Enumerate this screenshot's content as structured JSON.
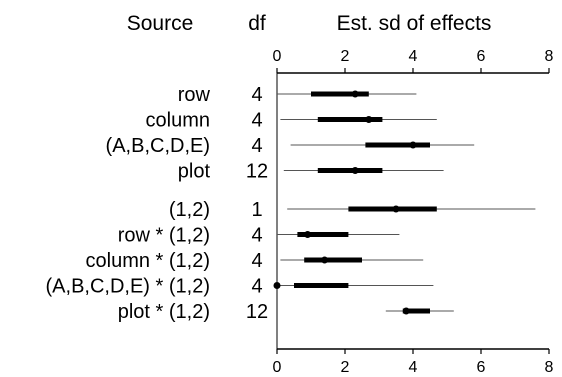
{
  "headers": {
    "source": "Source",
    "df": "df",
    "effects": "Est. sd of effects"
  },
  "chart_data": {
    "type": "interval",
    "title": "",
    "xlabel": "Est. sd of effects",
    "xlim": [
      0,
      8
    ],
    "xticks": [
      0,
      2,
      4,
      6,
      8
    ],
    "groups": [
      {
        "rows": [
          {
            "source": "row",
            "df": "4",
            "estimate": 2.3,
            "inner": [
              1.0,
              2.7
            ],
            "outer": [
              0.0,
              4.1
            ]
          },
          {
            "source": "column",
            "df": "4",
            "estimate": 2.7,
            "inner": [
              1.2,
              3.1
            ],
            "outer": [
              0.1,
              4.7
            ]
          },
          {
            "source": "(A,B,C,D,E)",
            "df": "4",
            "estimate": 4.0,
            "inner": [
              2.6,
              4.5
            ],
            "outer": [
              0.4,
              5.8
            ]
          },
          {
            "source": "plot",
            "df": "12",
            "estimate": 2.3,
            "inner": [
              1.2,
              3.1
            ],
            "outer": [
              0.2,
              4.9
            ]
          }
        ]
      },
      {
        "rows": [
          {
            "source": "(1,2)",
            "df": "1",
            "estimate": 3.5,
            "inner": [
              2.1,
              4.7
            ],
            "outer": [
              0.3,
              7.6
            ]
          },
          {
            "source": "row * (1,2)",
            "df": "4",
            "estimate": 0.9,
            "inner": [
              0.6,
              2.1
            ],
            "outer": [
              0.0,
              3.6
            ]
          },
          {
            "source": "column * (1,2)",
            "df": "4",
            "estimate": 1.4,
            "inner": [
              0.8,
              2.5
            ],
            "outer": [
              0.1,
              4.3
            ]
          },
          {
            "source": "(A,B,C,D,E) * (1,2)",
            "df": "4",
            "estimate": 0.0,
            "inner": [
              0.5,
              2.1
            ],
            "outer": [
              0.0,
              4.6
            ]
          },
          {
            "source": "plot * (1,2)",
            "df": "12",
            "estimate": 3.8,
            "inner": [
              3.7,
              4.5
            ],
            "outer": [
              3.2,
              5.2
            ]
          }
        ]
      }
    ]
  }
}
